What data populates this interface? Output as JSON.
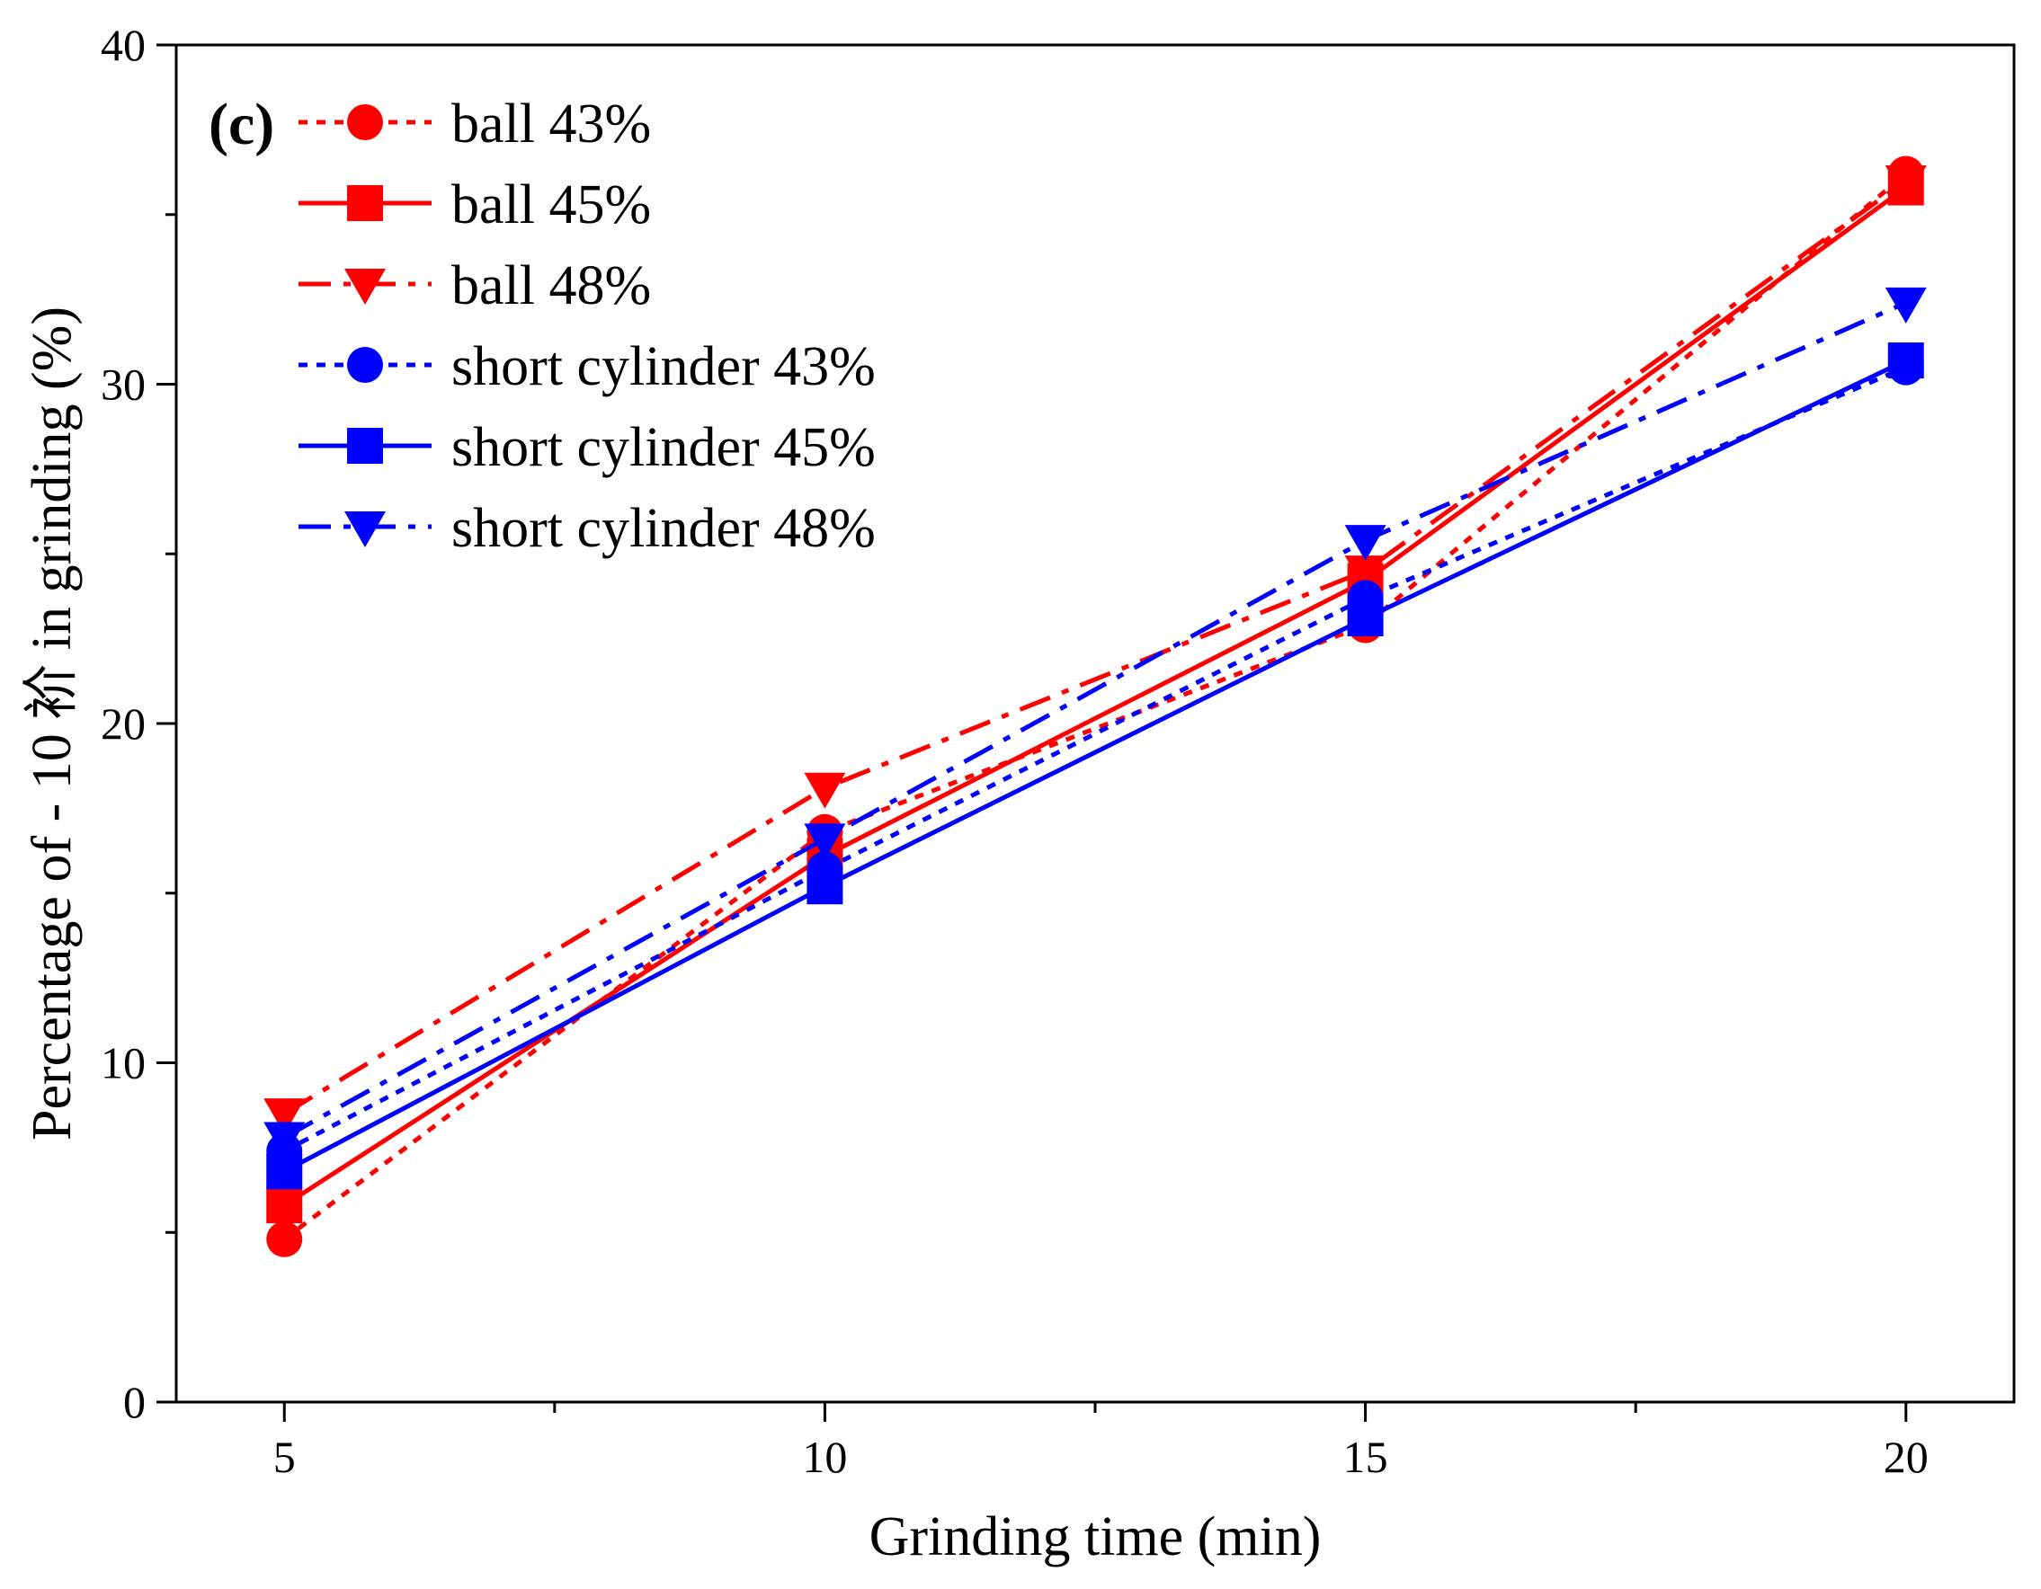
{
  "chart_data": {
    "type": "line",
    "panel_label": "(c)",
    "xlabel": "Grinding time (min)",
    "ylabel": "Percentage of - 10 衸   in grinding (%)",
    "xlim": [
      4,
      21
    ],
    "ylim": [
      0,
      40
    ],
    "x": [
      5,
      10,
      15,
      20
    ],
    "xticks": [
      5,
      10,
      15,
      20
    ],
    "xtick_labels": [
      "5",
      "10",
      "15",
      "20"
    ],
    "yticks": [
      0,
      10,
      20,
      30,
      40
    ],
    "ytick_labels": [
      "0",
      "10",
      "20",
      "30",
      "40"
    ],
    "grid": false,
    "legend_position": "top-left",
    "series": [
      {
        "name": "ball 43%",
        "label": "ball 43%",
        "values": [
          4.8,
          16.8,
          22.9,
          36.2
        ],
        "color": "#ff0000",
        "marker": "circle",
        "dash": "dotted"
      },
      {
        "name": "ball 45%",
        "label": "ball 45%",
        "values": [
          5.8,
          16.1,
          24.2,
          35.8
        ],
        "color": "#ff0000",
        "marker": "square",
        "dash": "solid"
      },
      {
        "name": "ball 48%",
        "label": "ball 48%",
        "values": [
          8.5,
          18.1,
          24.5,
          36.0
        ],
        "color": "#ff0000",
        "marker": "triangle-down",
        "dash": "dashdot"
      },
      {
        "name": "short cylinder 43%",
        "label": "short cylinder 43%",
        "values": [
          7.4,
          15.7,
          23.7,
          30.5
        ],
        "color": "#0000ff",
        "marker": "circle",
        "dash": "dotted"
      },
      {
        "name": "short cylinder 45%",
        "label": "short cylinder 45%",
        "values": [
          6.8,
          15.2,
          23.1,
          30.7
        ],
        "color": "#0000ff",
        "marker": "square",
        "dash": "solid"
      },
      {
        "name": "short cylinder 48%",
        "label": "short cylinder 48%",
        "values": [
          7.8,
          16.6,
          25.4,
          32.4
        ],
        "color": "#0000ff",
        "marker": "triangle-down",
        "dash": "dashdot"
      }
    ]
  }
}
